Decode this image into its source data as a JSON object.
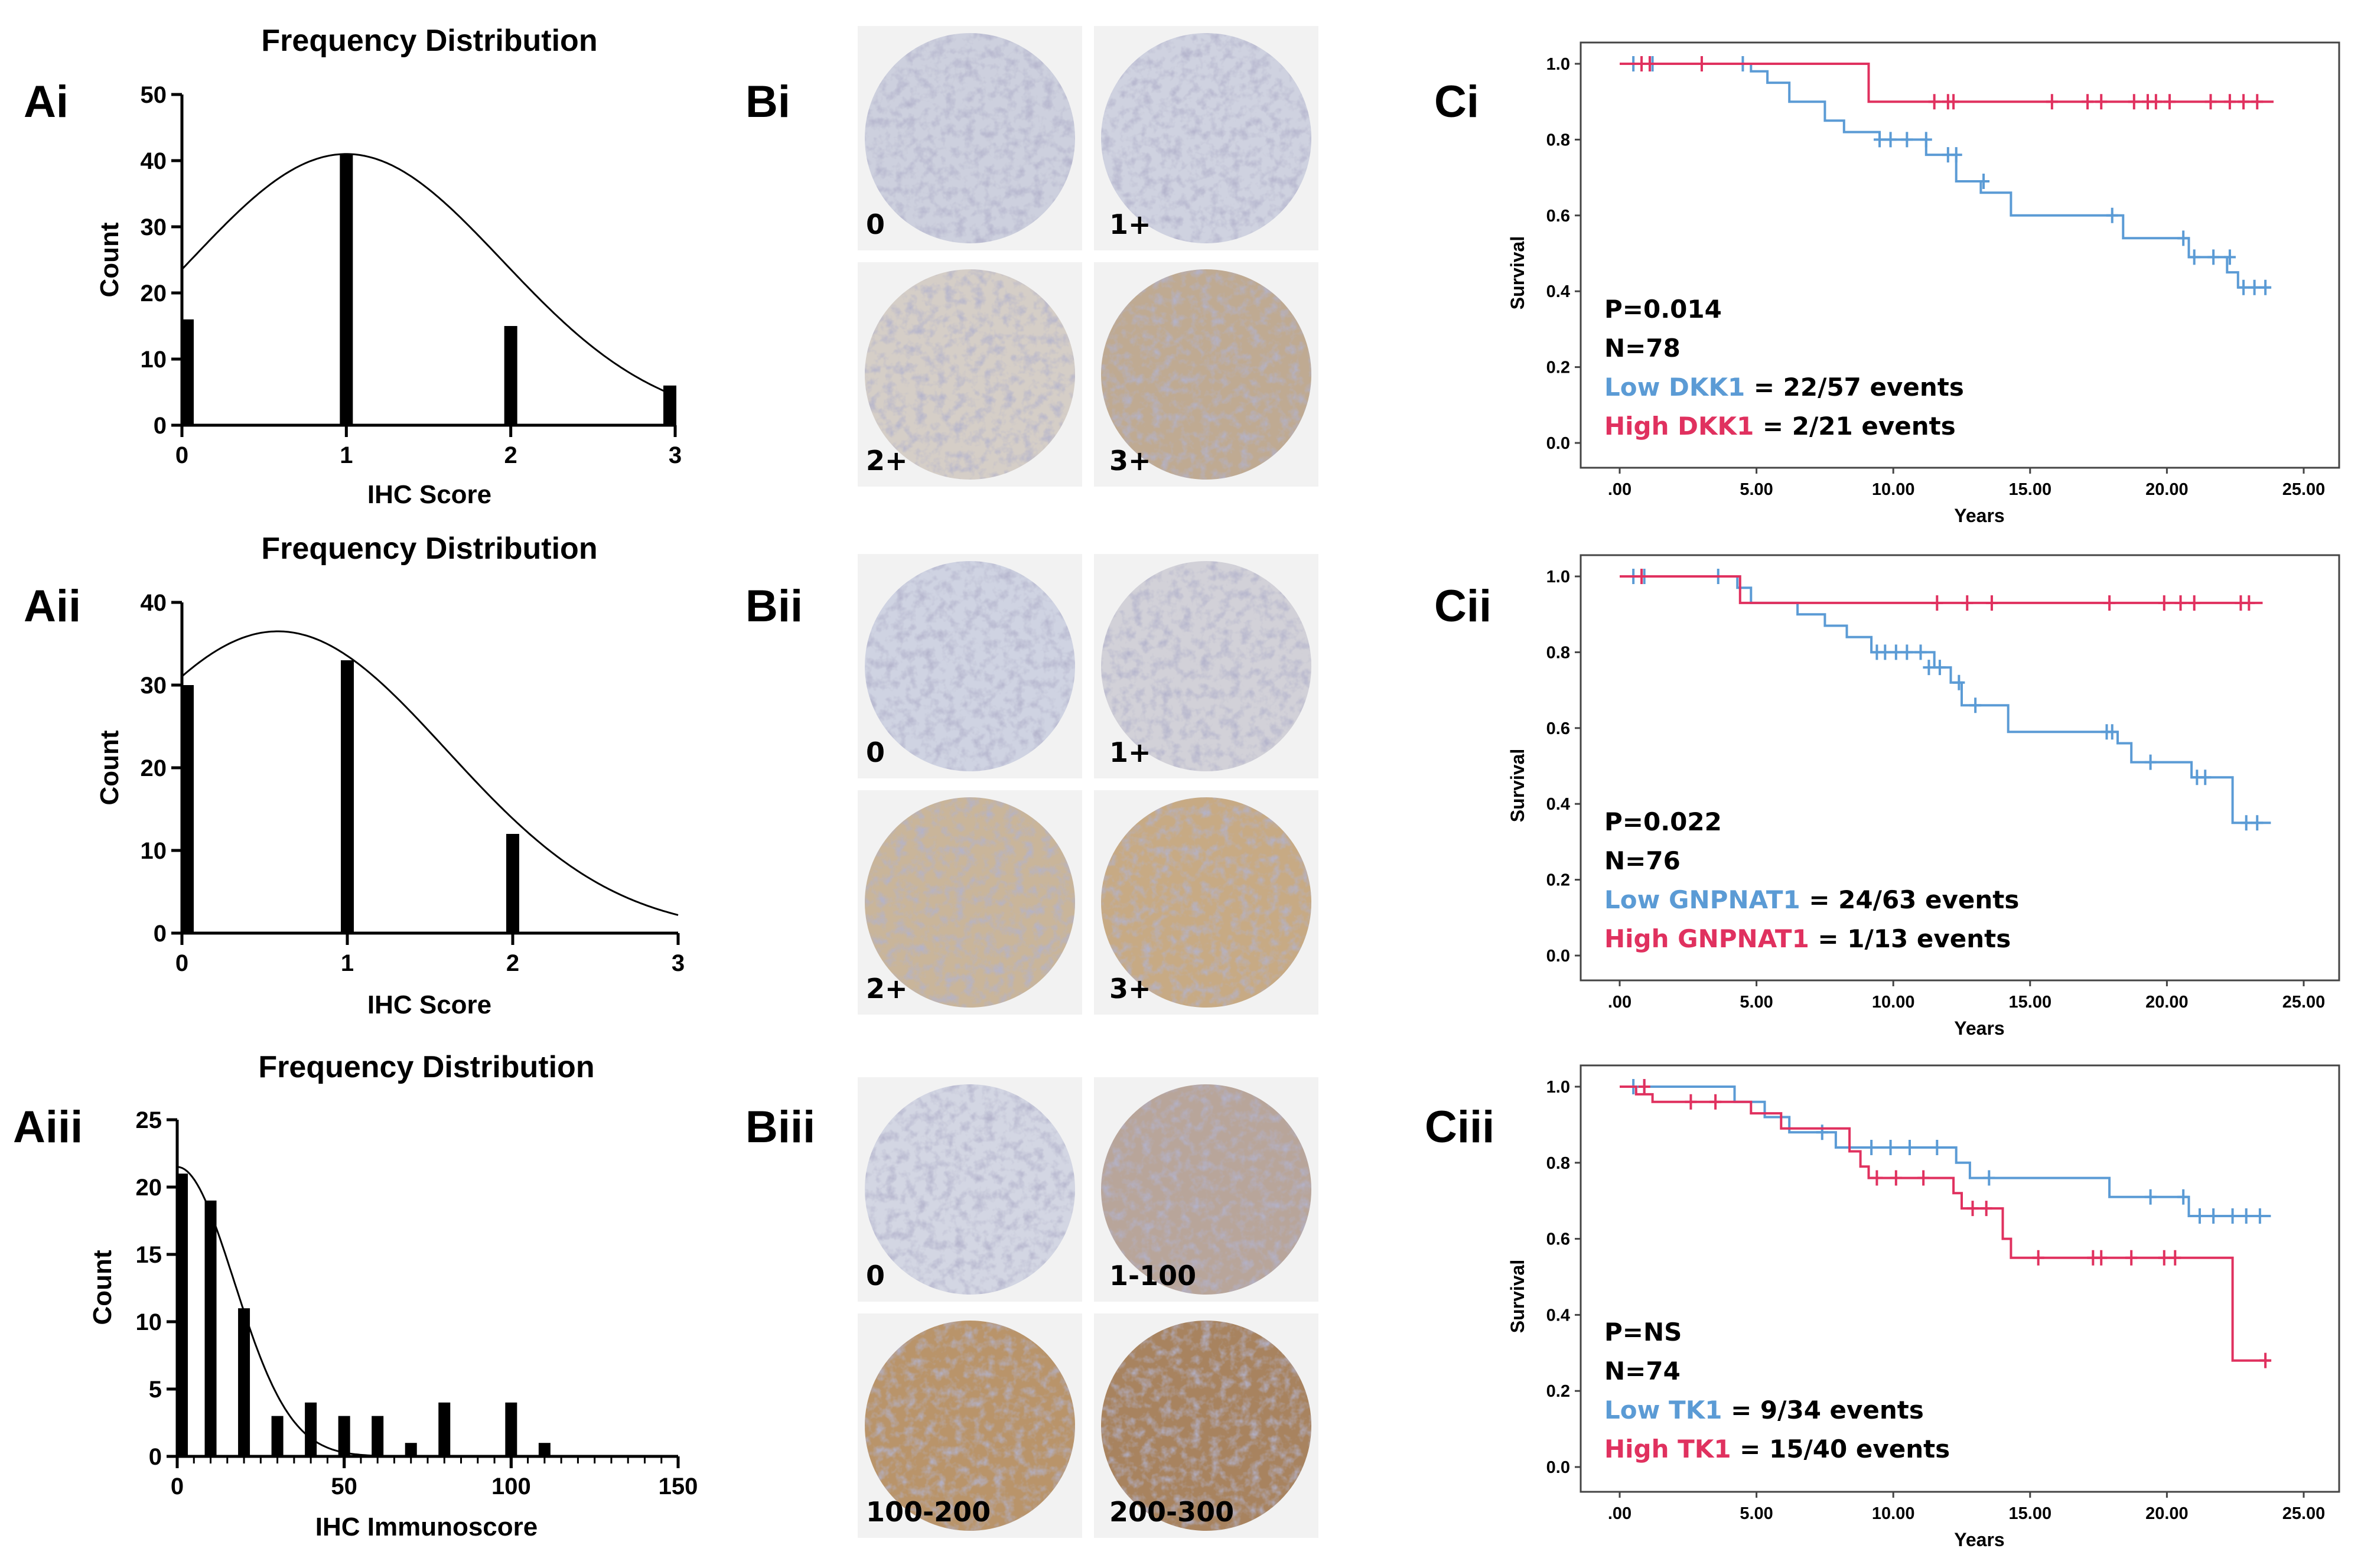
{
  "colors": {
    "low": "#5b9bd5",
    "high": "#e0315f",
    "bar": "#000000",
    "core_tile_bg": "#f2f2f2"
  },
  "panels_A": [
    {
      "label": "Ai",
      "chart_data": {
        "type": "bar",
        "title": "Frequency Distribution",
        "xlabel": "IHC Score",
        "ylabel": "Count",
        "x": [
          0,
          1,
          2,
          3
        ],
        "values": [
          16,
          41,
          15,
          6
        ],
        "xlim": [
          0,
          3
        ],
        "ylim": [
          0,
          50
        ],
        "xticks": [
          0,
          1,
          2,
          3
        ],
        "yticks": [
          0,
          10,
          20,
          30,
          40,
          50
        ],
        "fit_curve": {
          "type": "gaussian",
          "mean": 1.0,
          "sd": 0.95,
          "peak": 41
        }
      }
    },
    {
      "label": "Aii",
      "chart_data": {
        "type": "bar",
        "title": "Frequency Distribution",
        "xlabel": "IHC Score",
        "ylabel": "Count",
        "x": [
          0,
          1,
          2,
          3
        ],
        "values": [
          30,
          33,
          12,
          0
        ],
        "xlim": [
          0,
          3
        ],
        "ylim": [
          0,
          40
        ],
        "xticks": [
          0,
          1,
          2,
          3
        ],
        "yticks": [
          0,
          10,
          20,
          30,
          40
        ],
        "fit_curve": {
          "type": "gaussian",
          "mean": 0.58,
          "sd": 1.02,
          "peak": 36.5
        }
      }
    },
    {
      "label": "Aiii",
      "chart_data": {
        "type": "bar",
        "title": "Frequency Distribution",
        "xlabel": "IHC Immunoscore",
        "ylabel": "Count",
        "x": [
          0,
          10,
          20,
          30,
          40,
          50,
          60,
          70,
          80,
          100,
          110
        ],
        "values": [
          21,
          19,
          11,
          3,
          4,
          3,
          3,
          1,
          4,
          4,
          1
        ],
        "xlim": [
          0,
          150
        ],
        "ylim": [
          0,
          25
        ],
        "xticks": [
          0,
          50,
          100,
          150
        ],
        "yticks": [
          0,
          5,
          10,
          15,
          20,
          25
        ],
        "minor_tick_step": 5,
        "fit_curve": {
          "type": "gaussian",
          "mean": 0,
          "sd": 17,
          "peak": 21.5
        }
      }
    }
  ],
  "panels_B": [
    {
      "label": "Bi",
      "cores": [
        "0",
        "1+",
        "2+",
        "3+"
      ]
    },
    {
      "label": "Bii",
      "cores": [
        "0",
        "1+",
        "2+",
        "3+"
      ]
    },
    {
      "label": "Biii",
      "cores": [
        "0",
        "1-100",
        "100-200",
        "200-300"
      ]
    }
  ],
  "panels_C": [
    {
      "label": "Ci",
      "stats": {
        "p": "P=0.014",
        "n": "N=78",
        "low_name": "Low DKK1",
        "low_rest": " = 22/57 events",
        "high_name": "High DKK1",
        "high_rest": " = 2/21 events"
      },
      "chart_data": {
        "type": "line",
        "xlabel": "Years",
        "ylabel": "Survival",
        "xlim": [
          0,
          25
        ],
        "ylim": [
          0,
          1
        ],
        "xtick_labels": [
          ".00",
          "5.00",
          "10.00",
          "15.00",
          "20.00",
          "25.00"
        ],
        "ytick_labels": [
          "0.0",
          "0.2",
          "0.4",
          "0.6",
          "0.8",
          "1.0"
        ],
        "series": [
          {
            "name": "Low DKK1",
            "steps": [
              [
                0,
                1.0
              ],
              [
                4.8,
                0.98
              ],
              [
                5.4,
                0.95
              ],
              [
                6.2,
                0.9
              ],
              [
                7.5,
                0.85
              ],
              [
                8.2,
                0.82
              ],
              [
                9.5,
                0.8
              ],
              [
                11.2,
                0.76
              ],
              [
                12.3,
                0.69
              ],
              [
                13.2,
                0.66
              ],
              [
                14.3,
                0.6
              ],
              [
                17.8,
                0.6
              ],
              [
                18.4,
                0.54
              ],
              [
                20.8,
                0.49
              ],
              [
                22.2,
                0.45
              ],
              [
                22.6,
                0.41
              ],
              [
                23.8,
                0.41
              ]
            ],
            "censors": [
              [
                0.5,
                1.0
              ],
              [
                1.2,
                1.0
              ],
              [
                4.5,
                1.0
              ],
              [
                9.5,
                0.8
              ],
              [
                9.9,
                0.8
              ],
              [
                10.5,
                0.8
              ],
              [
                11.2,
                0.8
              ],
              [
                12.0,
                0.76
              ],
              [
                12.3,
                0.76
              ],
              [
                13.3,
                0.69
              ],
              [
                18.0,
                0.6
              ],
              [
                20.6,
                0.54
              ],
              [
                21.0,
                0.49
              ],
              [
                21.7,
                0.49
              ],
              [
                22.3,
                0.49
              ],
              [
                22.8,
                0.41
              ],
              [
                23.2,
                0.41
              ],
              [
                23.6,
                0.41
              ]
            ]
          },
          {
            "name": "High DKK1",
            "steps": [
              [
                0,
                1.0
              ],
              [
                9.1,
                1.0
              ],
              [
                9.1,
                0.9
              ],
              [
                23.9,
                0.9
              ]
            ],
            "censors": [
              [
                0.8,
                1.0
              ],
              [
                1.1,
                1.0
              ],
              [
                3.0,
                1.0
              ],
              [
                11.5,
                0.9
              ],
              [
                12.0,
                0.9
              ],
              [
                12.2,
                0.9
              ],
              [
                15.8,
                0.9
              ],
              [
                17.1,
                0.9
              ],
              [
                17.6,
                0.9
              ],
              [
                18.8,
                0.9
              ],
              [
                19.3,
                0.9
              ],
              [
                19.6,
                0.9
              ],
              [
                20.1,
                0.9
              ],
              [
                21.6,
                0.9
              ],
              [
                22.3,
                0.9
              ],
              [
                22.8,
                0.9
              ],
              [
                23.3,
                0.9
              ]
            ]
          }
        ]
      }
    },
    {
      "label": "Cii",
      "stats": {
        "p": "P=0.022",
        "n": "N=76",
        "low_name": "Low GNPNAT1",
        "low_rest": " = 24/63 events",
        "high_name": "High GNPNAT1",
        "high_rest": " = 1/13 events"
      },
      "chart_data": {
        "type": "line",
        "xlabel": "Years",
        "ylabel": "Survival",
        "xlim": [
          0,
          25
        ],
        "ylim": [
          0,
          1
        ],
        "xtick_labels": [
          ".00",
          "5.00",
          "10.00",
          "15.00",
          "20.00",
          "25.00"
        ],
        "ytick_labels": [
          "0.0",
          "0.2",
          "0.4",
          "0.6",
          "0.8",
          "1.0"
        ],
        "series": [
          {
            "name": "Low GNPNAT1",
            "steps": [
              [
                0,
                1.0
              ],
              [
                4.3,
                0.97
              ],
              [
                4.8,
                0.93
              ],
              [
                6.5,
                0.9
              ],
              [
                7.5,
                0.87
              ],
              [
                8.3,
                0.84
              ],
              [
                9.2,
                0.8
              ],
              [
                11.5,
                0.76
              ],
              [
                12.1,
                0.72
              ],
              [
                12.5,
                0.66
              ],
              [
                14.2,
                0.59
              ],
              [
                18.2,
                0.56
              ],
              [
                18.7,
                0.51
              ],
              [
                20.5,
                0.51
              ],
              [
                20.9,
                0.47
              ],
              [
                22.4,
                0.35
              ],
              [
                23.8,
                0.35
              ]
            ],
            "censors": [
              [
                0.5,
                1.0
              ],
              [
                0.9,
                1.0
              ],
              [
                3.6,
                1.0
              ],
              [
                9.4,
                0.8
              ],
              [
                9.7,
                0.8
              ],
              [
                10.1,
                0.8
              ],
              [
                10.5,
                0.8
              ],
              [
                11.0,
                0.8
              ],
              [
                11.3,
                0.76
              ],
              [
                11.7,
                0.76
              ],
              [
                12.4,
                0.72
              ],
              [
                13.0,
                0.66
              ],
              [
                17.8,
                0.59
              ],
              [
                18.0,
                0.59
              ],
              [
                19.4,
                0.51
              ],
              [
                21.1,
                0.47
              ],
              [
                21.4,
                0.47
              ],
              [
                22.9,
                0.35
              ],
              [
                23.3,
                0.35
              ]
            ]
          },
          {
            "name": "High GNPNAT1",
            "steps": [
              [
                0,
                1.0
              ],
              [
                4.4,
                1.0
              ],
              [
                4.4,
                0.93
              ],
              [
                23.5,
                0.93
              ]
            ],
            "censors": [
              [
                0.8,
                1.0
              ],
              [
                11.6,
                0.93
              ],
              [
                12.7,
                0.93
              ],
              [
                13.6,
                0.93
              ],
              [
                17.9,
                0.93
              ],
              [
                19.9,
                0.93
              ],
              [
                20.5,
                0.93
              ],
              [
                21.0,
                0.93
              ],
              [
                22.7,
                0.93
              ],
              [
                23.0,
                0.93
              ]
            ]
          }
        ]
      }
    },
    {
      "label": "Ciii",
      "stats": {
        "p": "P=NS",
        "n": "N=74",
        "low_name": "Low TK1",
        "low_rest": " = 9/34 events",
        "high_name": "High TK1",
        "high_rest": " = 15/40 events"
      },
      "chart_data": {
        "type": "line",
        "xlabel": "Years",
        "ylabel": "Survival",
        "xlim": [
          0,
          25
        ],
        "ylim": [
          0,
          1
        ],
        "xtick_labels": [
          ".00",
          "5.00",
          "10.00",
          "15.00",
          "20.00",
          "25.00"
        ],
        "ytick_labels": [
          "0.0",
          "0.2",
          "0.4",
          "0.6",
          "0.8",
          "1.0"
        ],
        "series": [
          {
            "name": "Low TK1",
            "steps": [
              [
                0,
                1.0
              ],
              [
                4.2,
                1.0
              ],
              [
                4.2,
                0.96
              ],
              [
                5.3,
                0.92
              ],
              [
                6.2,
                0.88
              ],
              [
                7.9,
                0.84
              ],
              [
                12.3,
                0.8
              ],
              [
                12.8,
                0.76
              ],
              [
                17.9,
                0.71
              ],
              [
                20.8,
                0.66
              ],
              [
                23.8,
                0.66
              ]
            ],
            "censors": [
              [
                0.5,
                1.0
              ],
              [
                0.9,
                1.0
              ],
              [
                7.4,
                0.88
              ],
              [
                9.2,
                0.84
              ],
              [
                9.9,
                0.84
              ],
              [
                10.6,
                0.84
              ],
              [
                11.6,
                0.84
              ],
              [
                13.5,
                0.76
              ],
              [
                19.4,
                0.71
              ],
              [
                20.6,
                0.71
              ],
              [
                21.2,
                0.66
              ],
              [
                21.7,
                0.66
              ],
              [
                22.4,
                0.66
              ],
              [
                22.9,
                0.66
              ],
              [
                23.4,
                0.66
              ]
            ]
          },
          {
            "name": "High TK1",
            "steps": [
              [
                0,
                1.0
              ],
              [
                0.6,
                0.98
              ],
              [
                1.2,
                0.96
              ],
              [
                4.8,
                0.93
              ],
              [
                5.9,
                0.89
              ],
              [
                8.4,
                0.83
              ],
              [
                8.8,
                0.79
              ],
              [
                9.1,
                0.76
              ],
              [
                12.2,
                0.72
              ],
              [
                12.5,
                0.68
              ],
              [
                14.0,
                0.6
              ],
              [
                14.3,
                0.55
              ],
              [
                22.4,
                0.55
              ],
              [
                22.4,
                0.28
              ],
              [
                23.8,
                0.28
              ]
            ],
            "censors": [
              [
                0.9,
                1.0
              ],
              [
                2.6,
                0.96
              ],
              [
                3.5,
                0.96
              ],
              [
                9.4,
                0.76
              ],
              [
                10.1,
                0.76
              ],
              [
                11.1,
                0.76
              ],
              [
                12.9,
                0.68
              ],
              [
                13.4,
                0.68
              ],
              [
                15.3,
                0.55
              ],
              [
                17.3,
                0.55
              ],
              [
                17.6,
                0.55
              ],
              [
                18.7,
                0.55
              ],
              [
                19.9,
                0.55
              ],
              [
                20.3,
                0.55
              ],
              [
                23.6,
                0.28
              ]
            ]
          }
        ]
      }
    }
  ]
}
